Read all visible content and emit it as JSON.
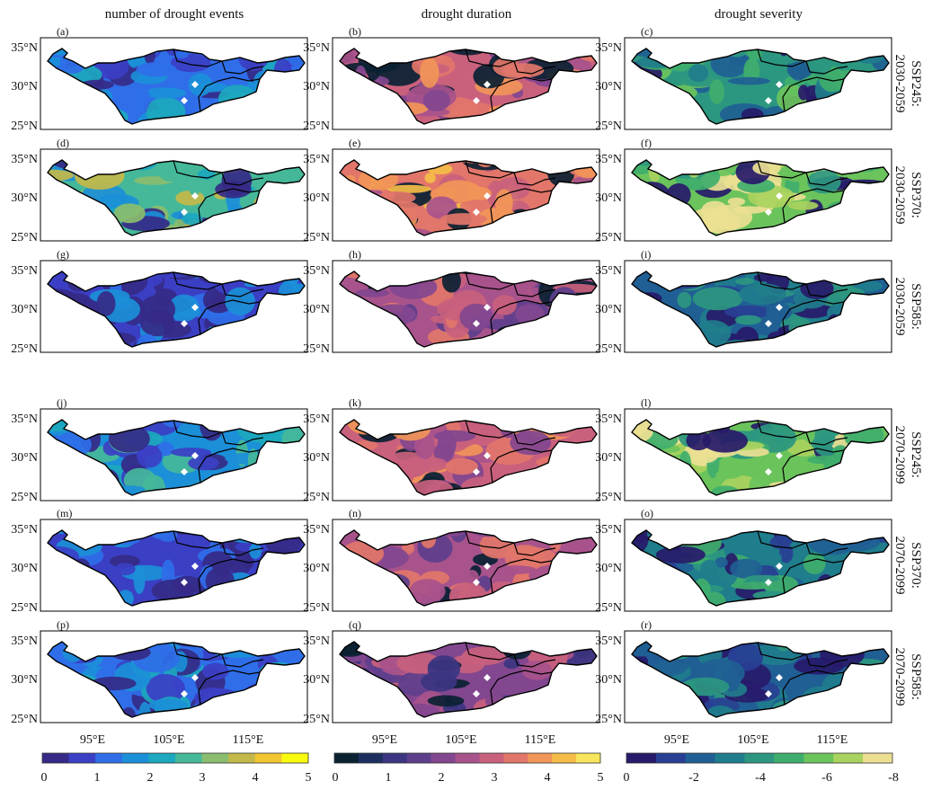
{
  "column_titles": [
    "number of drought events",
    "drought duration",
    "drought severity"
  ],
  "row_labels": [
    {
      "scenario": "SSP245:",
      "period": "2030-2059"
    },
    {
      "scenario": "SSP370:",
      "period": "2030-2059"
    },
    {
      "scenario": "SSP585:",
      "period": "2030-2059"
    },
    {
      "scenario": "SSP245:",
      "period": "2070-2099"
    },
    {
      "scenario": "SSP370:",
      "period": "2070-2099"
    },
    {
      "scenario": "SSP585:",
      "period": "2070-2099"
    }
  ],
  "panel_letters": [
    "(a)",
    "(b)",
    "(c)",
    "(d)",
    "(e)",
    "(f)",
    "(g)",
    "(h)",
    "(i)",
    "(j)",
    "(k)",
    "(l)",
    "(m)",
    "(n)",
    "(o)",
    "(p)",
    "(q)",
    "(r)"
  ],
  "lat_ticks": [
    "35°N",
    "30°N",
    "25°N"
  ],
  "lon_ticks": [
    "95°E",
    "105°E",
    "115°E"
  ],
  "colorbars": [
    {
      "name": "events",
      "tick_labels": [
        "0",
        "1",
        "2",
        "3",
        "4",
        "5"
      ],
      "colors": [
        "#352a87",
        "#3b3fc4",
        "#2f6ee8",
        "#1b8fd8",
        "#1ca8be",
        "#45b89a",
        "#8abd6e",
        "#c3b94a",
        "#f2c532",
        "#f9fb0e"
      ]
    },
    {
      "name": "duration",
      "tick_labels": [
        "0",
        "1",
        "2",
        "3",
        "4",
        "5"
      ],
      "colors": [
        "#0b2233",
        "#1d2f5e",
        "#3c3581",
        "#5e3f8c",
        "#82478f",
        "#a8538c",
        "#c9617d",
        "#e2766a",
        "#f19558",
        "#f5bd48",
        "#f7e55c"
      ]
    },
    {
      "name": "severity",
      "tick_labels": [
        "0",
        "-2",
        "-4",
        "-6",
        "-8"
      ],
      "colors": [
        "#271a6a",
        "#283f94",
        "#205f94",
        "#1f7d8c",
        "#2c9780",
        "#3fae6c",
        "#6bc35c",
        "#a9d35e",
        "#ecdf92"
      ]
    }
  ],
  "panel_dominant_class": [
    [
      2,
      6,
      4
    ],
    [
      5,
      7,
      6
    ],
    [
      1,
      5,
      2
    ],
    [
      3,
      6,
      6
    ],
    [
      1,
      5,
      3
    ],
    [
      2,
      4,
      2
    ]
  ]
}
